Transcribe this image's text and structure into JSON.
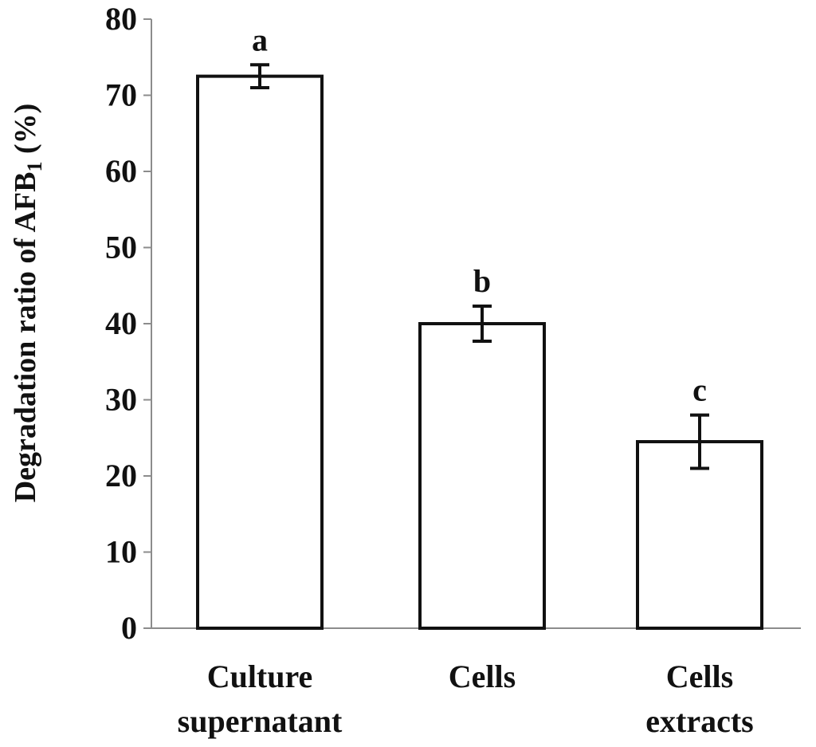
{
  "chart_data": {
    "type": "bar",
    "title": "",
    "xlabel": "",
    "ylabel": {
      "main": "Degradation ratio of AFB",
      "subscript": "1",
      "suffix": " (%)"
    },
    "ylim": [
      0,
      80
    ],
    "yticks": [
      0,
      10,
      20,
      30,
      40,
      50,
      60,
      70,
      80
    ],
    "grid": false,
    "legend": "none",
    "categories": [
      [
        "Culture",
        "supernatant"
      ],
      [
        "Cells"
      ],
      [
        "Cells",
        "extracts"
      ]
    ],
    "values": [
      72.5,
      40.0,
      24.5
    ],
    "errors": [
      1.5,
      2.3,
      3.5
    ],
    "significance": [
      "a",
      "b",
      "c"
    ],
    "colors": {
      "bar_fill": "#ffffff",
      "bar_stroke": "#111111",
      "axis": "#8c8c8c"
    }
  }
}
